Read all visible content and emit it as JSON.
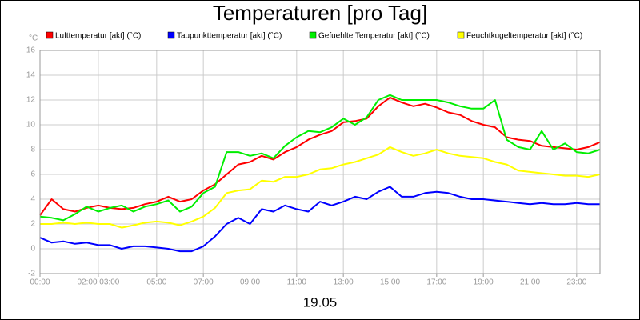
{
  "chart_data": {
    "type": "line",
    "title": "Temperaturen [pro Tag]",
    "y_unit": "°C",
    "x_label": "19.05",
    "xlim": [
      0,
      24
    ],
    "ylim": [
      -2,
      16
    ],
    "grid": true,
    "yticks": [
      -2,
      0,
      2,
      4,
      6,
      8,
      10,
      12,
      14,
      16
    ],
    "xticks": [
      {
        "value": 0,
        "label": "00:00"
      },
      {
        "value": 2.5,
        "label": "02:00 03:00"
      },
      {
        "value": 5,
        "label": "05:00"
      },
      {
        "value": 7,
        "label": "07:00"
      },
      {
        "value": 9,
        "label": "09:00"
      },
      {
        "value": 11,
        "label": "11:00"
      },
      {
        "value": 13,
        "label": "13:00"
      },
      {
        "value": 15,
        "label": "15:00"
      },
      {
        "value": 17,
        "label": "17:00"
      },
      {
        "value": 19,
        "label": "19:00"
      },
      {
        "value": 21,
        "label": "21:00"
      },
      {
        "value": 23,
        "label": "23:00"
      }
    ],
    "x": [
      0,
      0.5,
      1,
      1.5,
      2,
      2.5,
      3,
      3.5,
      4,
      4.5,
      5,
      5.5,
      6,
      6.5,
      7,
      7.5,
      8,
      8.5,
      9,
      9.5,
      10,
      10.5,
      11,
      11.5,
      12,
      12.5,
      13,
      13.5,
      14,
      14.5,
      15,
      15.5,
      16,
      16.5,
      17,
      17.5,
      18,
      18.5,
      19,
      19.5,
      20,
      20.5,
      21,
      21.5,
      22,
      22.5,
      23,
      23.5,
      24
    ],
    "series": [
      {
        "name": "Lufttemperatur [akt] (°C)",
        "color": "#ff0000",
        "values": [
          2.7,
          4.0,
          3.2,
          3.0,
          3.3,
          3.5,
          3.3,
          3.2,
          3.3,
          3.6,
          3.8,
          4.2,
          3.8,
          4.0,
          4.7,
          5.2,
          6.0,
          6.8,
          7.0,
          7.5,
          7.2,
          7.8,
          8.2,
          8.8,
          9.2,
          9.5,
          10.2,
          10.3,
          10.5,
          11.5,
          12.2,
          11.8,
          11.5,
          11.7,
          11.4,
          11.0,
          10.8,
          10.3,
          10.0,
          9.8,
          9.0,
          8.8,
          8.7,
          8.3,
          8.2,
          8.1,
          8.0,
          8.2,
          8.6
        ]
      },
      {
        "name": "Taupunkttemperatur [akt] (°C)",
        "color": "#0000ff",
        "values": [
          0.9,
          0.5,
          0.6,
          0.4,
          0.5,
          0.3,
          0.3,
          0.0,
          0.2,
          0.2,
          0.1,
          0.0,
          -0.2,
          -0.2,
          0.2,
          1.0,
          2.0,
          2.5,
          2.0,
          3.2,
          3.0,
          3.5,
          3.2,
          3.0,
          3.8,
          3.5,
          3.8,
          4.2,
          4.0,
          4.6,
          5.0,
          4.2,
          4.2,
          4.5,
          4.6,
          4.5,
          4.2,
          4.0,
          4.0,
          3.9,
          3.8,
          3.7,
          3.6,
          3.7,
          3.6,
          3.6,
          3.7,
          3.6,
          3.6
        ]
      },
      {
        "name": "Gefuehlte Temperatur [akt] (°C)",
        "color": "#00ee00",
        "values": [
          2.6,
          2.5,
          2.3,
          2.8,
          3.4,
          3.0,
          3.3,
          3.5,
          3.0,
          3.4,
          3.6,
          3.9,
          3.0,
          3.4,
          4.5,
          5.0,
          7.8,
          7.8,
          7.5,
          7.7,
          7.3,
          8.3,
          9.0,
          9.5,
          9.4,
          9.8,
          10.5,
          10.0,
          10.6,
          12.0,
          12.4,
          12.0,
          12.0,
          12.0,
          12.0,
          11.8,
          11.5,
          11.3,
          11.3,
          12.0,
          8.8,
          8.2,
          8.0,
          9.5,
          8.0,
          8.5,
          7.8,
          7.7,
          8.0
        ]
      },
      {
        "name": "Feuchtkugeltemperatur [akt] (°C)",
        "color": "#ffff00",
        "values": [
          2.0,
          2.0,
          2.1,
          2.0,
          2.1,
          2.0,
          2.0,
          1.7,
          1.9,
          2.1,
          2.2,
          2.1,
          1.9,
          2.2,
          2.6,
          3.3,
          4.5,
          4.7,
          4.8,
          5.5,
          5.4,
          5.8,
          5.8,
          6.0,
          6.4,
          6.5,
          6.8,
          7.0,
          7.3,
          7.6,
          8.2,
          7.8,
          7.5,
          7.7,
          8.0,
          7.7,
          7.5,
          7.4,
          7.3,
          7.0,
          6.8,
          6.3,
          6.2,
          6.1,
          6.0,
          5.9,
          5.9,
          5.8,
          6.0
        ]
      }
    ]
  }
}
